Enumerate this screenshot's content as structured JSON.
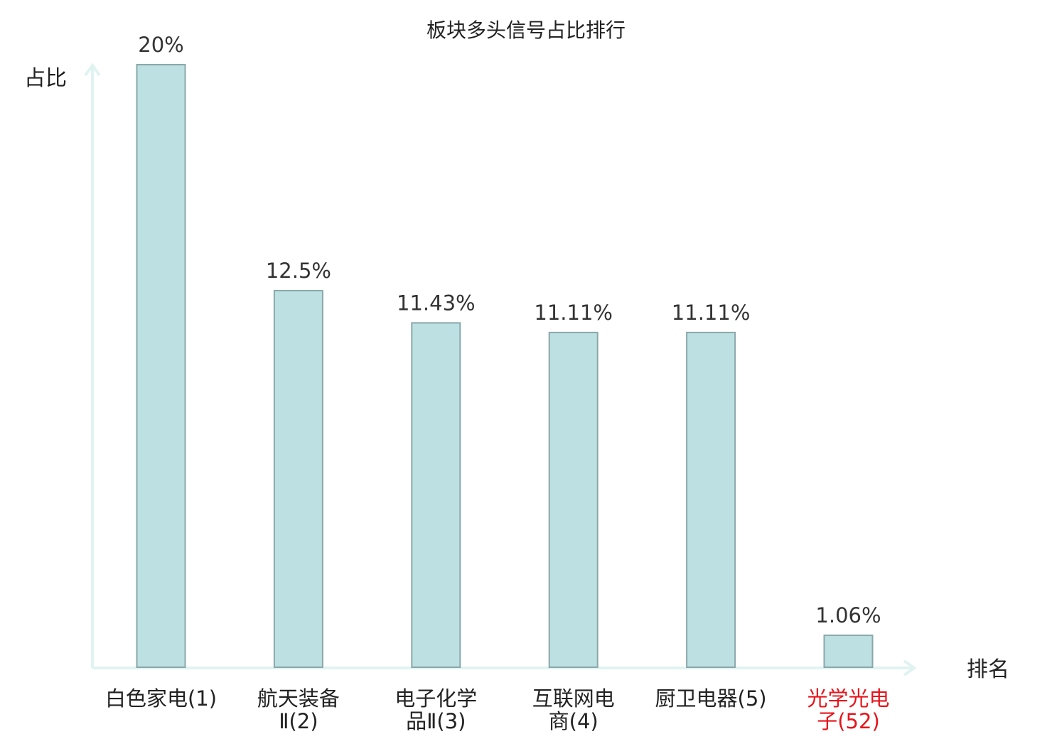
{
  "chart_data": {
    "type": "bar",
    "title": "板块多头信号占比排行",
    "ylabel": "占比",
    "xlabel": "排名",
    "categories": [
      {
        "name": "白色家电",
        "rank": "(1)",
        "lines": [
          "白色家电(1)"
        ],
        "highlight": false
      },
      {
        "name": "航天装备Ⅱ",
        "rank": "(2)",
        "lines": [
          "航天装备",
          "Ⅱ(2)"
        ],
        "highlight": false
      },
      {
        "name": "电子化学品Ⅱ",
        "rank": "(3)",
        "lines": [
          "电子化学",
          "品Ⅱ(3)"
        ],
        "highlight": false
      },
      {
        "name": "互联网电商",
        "rank": "(4)",
        "lines": [
          "互联网电",
          "商(4)"
        ],
        "highlight": false
      },
      {
        "name": "厨卫电器",
        "rank": "(5)",
        "lines": [
          "厨卫电器(5)"
        ],
        "highlight": false
      },
      {
        "name": "光学光电子",
        "rank": "(52)",
        "lines": [
          "光学光电",
          "子(52)"
        ],
        "highlight": true
      }
    ],
    "values": [
      20,
      12.5,
      11.43,
      11.11,
      11.11,
      1.06
    ],
    "value_labels": [
      "20%",
      "12.5%",
      "11.43%",
      "11.11%",
      "11.11%",
      "1.06%"
    ],
    "ylim": [
      0,
      20
    ],
    "grid": false,
    "legend": "none",
    "colors": {
      "bar_fill": "#bde0e3",
      "bar_stroke": "#8aa8aa",
      "axis": "#e0f3f1",
      "text": "#222222",
      "value_text": "#333333",
      "highlight_text": "#e8141b"
    }
  }
}
